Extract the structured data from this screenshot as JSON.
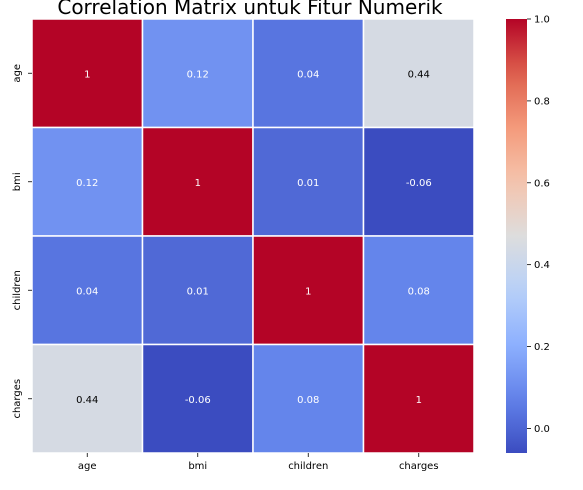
{
  "chart_data": {
    "type": "heatmap",
    "title": "Correlation Matrix untuk Fitur Numerik",
    "x_categories": [
      "age",
      "bmi",
      "children",
      "charges"
    ],
    "y_categories": [
      "age",
      "bmi",
      "children",
      "charges"
    ],
    "values": [
      [
        1,
        0.12,
        0.04,
        0.44
      ],
      [
        0.12,
        1,
        0.01,
        -0.06
      ],
      [
        0.04,
        0.01,
        1,
        0.08
      ],
      [
        0.44,
        -0.06,
        0.08,
        1
      ]
    ],
    "value_labels": [
      [
        "1",
        "0.12",
        "0.04",
        "0.44"
      ],
      [
        "0.12",
        "1",
        "0.01",
        "-0.06"
      ],
      [
        "0.04",
        "0.01",
        "1",
        "0.08"
      ],
      [
        "0.44",
        "-0.06",
        "0.08",
        "1"
      ]
    ],
    "colormap": "coolwarm",
    "color_range": [
      -0.06,
      1.0
    ],
    "colorbar_ticks": [
      "0.0",
      "0.2",
      "0.4",
      "0.6",
      "0.8",
      "1.0"
    ],
    "colorbar_tick_values": [
      0.0,
      0.2,
      0.4,
      0.6,
      0.8,
      1.0
    ],
    "legend_position": "right",
    "grid": false
  }
}
